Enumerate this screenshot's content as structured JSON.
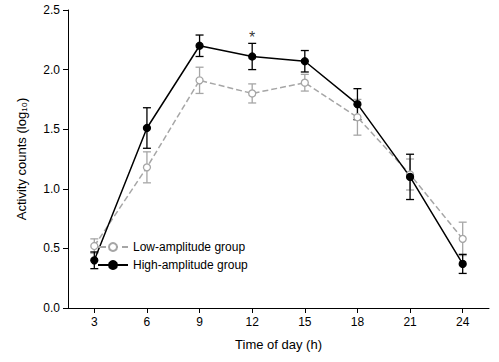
{
  "chart_data": {
    "type": "line",
    "x_label": "Time of day (h)",
    "y_label": "Activity counts (log₁₀)",
    "x": [
      3,
      6,
      9,
      12,
      15,
      18,
      21,
      24
    ],
    "series": [
      {
        "name": "Low-amplitude group",
        "color": "#a6a6a6",
        "marker": "open_circle",
        "line_style": "dashed",
        "values": [
          0.52,
          1.18,
          1.91,
          1.8,
          1.89,
          1.6,
          1.12,
          0.58
        ],
        "errors": [
          0.06,
          0.13,
          0.11,
          0.08,
          0.07,
          0.15,
          0.13,
          0.14
        ]
      },
      {
        "name": "High-amplitude group",
        "color": "#000000",
        "marker": "filled_circle",
        "line_style": "solid",
        "values": [
          0.4,
          1.51,
          2.2,
          2.11,
          2.07,
          1.71,
          1.1,
          0.37
        ],
        "errors": [
          0.07,
          0.17,
          0.09,
          0.11,
          0.09,
          0.13,
          0.19,
          0.08
        ]
      }
    ],
    "annotations": [
      {
        "text": "*",
        "x": 12,
        "y": 2.27
      }
    ],
    "xlim": [
      1.5,
      25.5
    ],
    "xticks": [
      3,
      6,
      9,
      12,
      15,
      18,
      21,
      24
    ],
    "ylim": [
      0,
      2.5
    ],
    "yticks": [
      {
        "value": 0,
        "label": "0.0"
      },
      0.5,
      {
        "value": 1,
        "label": "1.0"
      },
      1.5,
      {
        "value": 2,
        "label": "2.0"
      },
      2.5
    ],
    "grid": false,
    "legend": "lower left"
  }
}
